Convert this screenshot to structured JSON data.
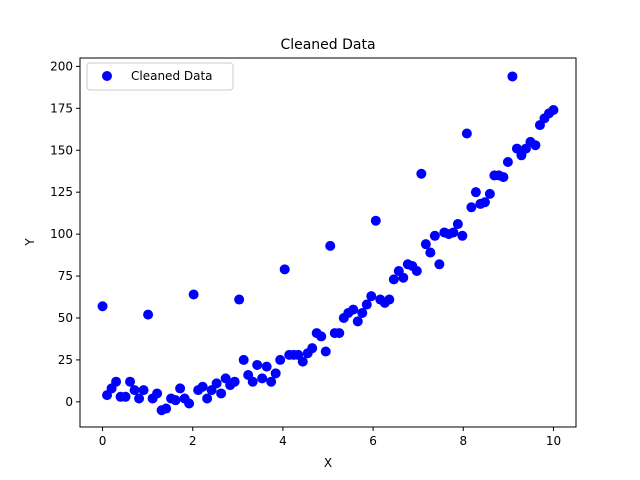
{
  "chart_data": {
    "type": "scatter",
    "title": "Cleaned Data",
    "xlabel": "X",
    "ylabel": "Y",
    "xlim": [
      -0.5,
      10.5
    ],
    "ylim": [
      -15,
      205
    ],
    "xticks": [
      0,
      2,
      4,
      6,
      8,
      10
    ],
    "yticks": [
      0,
      25,
      50,
      75,
      100,
      125,
      150,
      175,
      200
    ],
    "grid": false,
    "legend_position": "top-left",
    "series": [
      {
        "name": "Cleaned Data",
        "color": "#0000ff",
        "points": [
          [
            0.0,
            57
          ],
          [
            0.1,
            4
          ],
          [
            0.2,
            8
          ],
          [
            0.3,
            12
          ],
          [
            0.4,
            3
          ],
          [
            0.51,
            3
          ],
          [
            0.61,
            12
          ],
          [
            0.71,
            7
          ],
          [
            0.81,
            2
          ],
          [
            0.91,
            7
          ],
          [
            1.01,
            52
          ],
          [
            1.11,
            2
          ],
          [
            1.21,
            5
          ],
          [
            1.31,
            -5
          ],
          [
            1.41,
            -4
          ],
          [
            1.52,
            2
          ],
          [
            1.62,
            1
          ],
          [
            1.72,
            8
          ],
          [
            1.82,
            2
          ],
          [
            1.92,
            -1
          ],
          [
            2.02,
            64
          ],
          [
            2.12,
            7
          ],
          [
            2.22,
            9
          ],
          [
            2.32,
            2
          ],
          [
            2.42,
            7
          ],
          [
            2.53,
            11
          ],
          [
            2.63,
            5
          ],
          [
            2.73,
            14
          ],
          [
            2.83,
            10
          ],
          [
            2.93,
            12
          ],
          [
            3.03,
            61
          ],
          [
            3.13,
            25
          ],
          [
            3.23,
            16
          ],
          [
            3.33,
            12
          ],
          [
            3.43,
            22
          ],
          [
            3.54,
            14
          ],
          [
            3.64,
            21
          ],
          [
            3.74,
            12
          ],
          [
            3.84,
            17
          ],
          [
            3.94,
            25
          ],
          [
            4.04,
            79
          ],
          [
            4.14,
            28
          ],
          [
            4.24,
            28
          ],
          [
            4.34,
            28
          ],
          [
            4.44,
            24
          ],
          [
            4.55,
            29
          ],
          [
            4.65,
            32
          ],
          [
            4.75,
            41
          ],
          [
            4.85,
            39
          ],
          [
            4.95,
            30
          ],
          [
            5.05,
            93
          ],
          [
            5.15,
            41
          ],
          [
            5.25,
            41
          ],
          [
            5.35,
            50
          ],
          [
            5.45,
            53
          ],
          [
            5.56,
            55
          ],
          [
            5.66,
            48
          ],
          [
            5.76,
            53
          ],
          [
            5.86,
            58
          ],
          [
            5.96,
            63
          ],
          [
            6.06,
            108
          ],
          [
            6.16,
            61
          ],
          [
            6.26,
            59
          ],
          [
            6.36,
            61
          ],
          [
            6.46,
            73
          ],
          [
            6.57,
            78
          ],
          [
            6.67,
            74
          ],
          [
            6.77,
            82
          ],
          [
            6.87,
            81
          ],
          [
            6.97,
            78
          ],
          [
            7.07,
            136
          ],
          [
            7.17,
            94
          ],
          [
            7.27,
            89
          ],
          [
            7.37,
            99
          ],
          [
            7.47,
            82
          ],
          [
            7.58,
            101
          ],
          [
            7.68,
            100
          ],
          [
            7.78,
            101
          ],
          [
            7.88,
            106
          ],
          [
            7.98,
            99
          ],
          [
            8.08,
            160
          ],
          [
            8.18,
            116
          ],
          [
            8.28,
            125
          ],
          [
            8.38,
            118
          ],
          [
            8.48,
            119
          ],
          [
            8.59,
            124
          ],
          [
            8.69,
            135
          ],
          [
            8.79,
            135
          ],
          [
            8.89,
            134
          ],
          [
            8.99,
            143
          ],
          [
            9.09,
            194
          ],
          [
            9.19,
            151
          ],
          [
            9.29,
            147
          ],
          [
            9.39,
            151
          ],
          [
            9.49,
            155
          ],
          [
            9.6,
            153
          ],
          [
            9.7,
            165
          ],
          [
            9.8,
            169
          ],
          [
            9.9,
            172
          ],
          [
            10.0,
            174
          ]
        ]
      }
    ]
  }
}
